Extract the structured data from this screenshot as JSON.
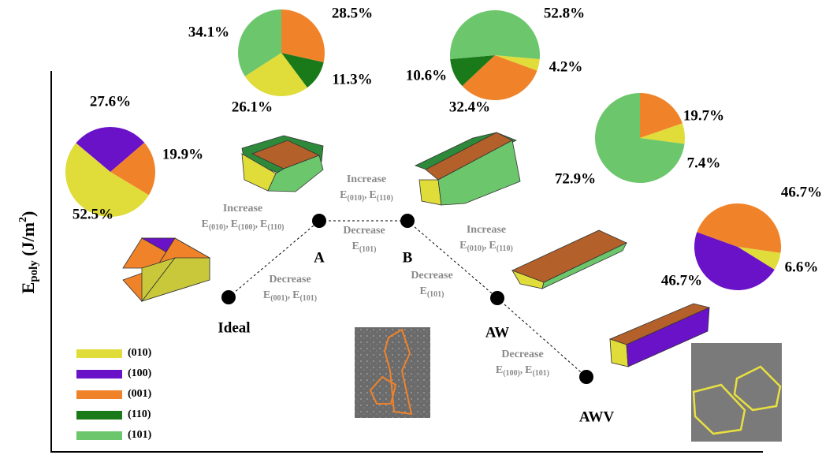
{
  "y_axis_label": {
    "base": "E",
    "sub": "poly",
    "rest": " (J/m",
    "sup": "2",
    "end": ")"
  },
  "pies": [
    {
      "state": "Ideal",
      "slices": [
        {
          "facet": "(100)",
          "color": "#6a12c8",
          "value": 27.6,
          "value_label": "27.6%"
        },
        {
          "facet": "(001)",
          "color": "#f0832a",
          "value": 19.9,
          "value_label": "19.9%"
        },
        {
          "facet": "(010)",
          "color": "#e0dc3a",
          "value": 52.5,
          "value_label": "52.5%"
        }
      ]
    },
    {
      "state": "A",
      "slices": [
        {
          "facet": "(001)",
          "color": "#f0832a",
          "value": 28.5,
          "value_label": "28.5%"
        },
        {
          "facet": "(110)",
          "color": "#1a7a1a",
          "value": 11.3,
          "value_label": "11.3%"
        },
        {
          "facet": "(010)",
          "color": "#e0dc3a",
          "value": 26.1,
          "value_label": "26.1%"
        },
        {
          "facet": "(101)",
          "color": "#6cc66c",
          "value": 34.1,
          "value_label": "34.1%"
        }
      ]
    },
    {
      "state": "B",
      "slices": [
        {
          "facet": "(010)",
          "color": "#e0dc3a",
          "value": 4.2,
          "value_label": "4.2%"
        },
        {
          "facet": "(001)",
          "color": "#f0832a",
          "value": 32.4,
          "value_label": "32.4%"
        },
        {
          "facet": "(110)",
          "color": "#1a7a1a",
          "value": 10.6,
          "value_label": "10.6%"
        },
        {
          "facet": "(101)",
          "color": "#6cc66c",
          "value": 52.8,
          "value_label": "52.8%"
        }
      ]
    },
    {
      "state": "AW",
      "slices": [
        {
          "facet": "(001)",
          "color": "#f0832a",
          "value": 19.7,
          "value_label": "19.7%"
        },
        {
          "facet": "(010)",
          "color": "#e0dc3a",
          "value": 7.4,
          "value_label": "7.4%"
        },
        {
          "facet": "(101)",
          "color": "#6cc66c",
          "value": 72.9,
          "value_label": "72.9%"
        }
      ]
    },
    {
      "state": "AWV",
      "slices": [
        {
          "facet": "(010)",
          "color": "#e0dc3a",
          "value": 6.6,
          "value_label": "6.6%"
        },
        {
          "facet": "(100)",
          "color": "#6a12c8",
          "value": 46.7,
          "value_label": "46.7%"
        },
        {
          "facet": "(001)",
          "color": "#f0832a",
          "value": 46.7,
          "value_label": "46.7%"
        }
      ]
    }
  ],
  "states": [
    "Ideal",
    "A",
    "B",
    "AW",
    "AWV"
  ],
  "annotations": [
    {
      "word": "Increase",
      "separator": ",",
      "terms": [
        {
          "base": "E",
          "sub": "(010)"
        },
        {
          "base": "E",
          "sub": "(100)"
        },
        {
          "base": "E",
          "sub": "(110)"
        }
      ]
    },
    {
      "word": "Decrease",
      "separator": ",",
      "terms": [
        {
          "base": "E",
          "sub": "(001)"
        },
        {
          "base": "E",
          "sub": "(101)"
        }
      ]
    },
    {
      "word": "Increase",
      "separator": ",",
      "terms": [
        {
          "base": "E",
          "sub": "(010)"
        },
        {
          "base": "E",
          "sub": "(110)"
        }
      ]
    },
    {
      "word": "Decrease",
      "separator": ",",
      "terms": [
        {
          "base": "E",
          "sub": "(101)"
        }
      ]
    },
    {
      "word": "Decrease",
      "separator": ",",
      "terms": [
        {
          "base": "E",
          "sub": "(101)"
        }
      ]
    },
    {
      "word": "Increase",
      "separator": ",",
      "terms": [
        {
          "base": "E",
          "sub": "(010)"
        },
        {
          "base": "E",
          "sub": "(110)"
        }
      ]
    },
    {
      "word": "Decrease",
      "separator": ",",
      "terms": [
        {
          "base": "E",
          "sub": "(100)"
        },
        {
          "base": "E",
          "sub": "(101)"
        }
      ]
    }
  ],
  "legend": [
    {
      "label": "(010)",
      "color": "#e0dc3a"
    },
    {
      "label": "(100)",
      "color": "#6a12c8"
    },
    {
      "label": "(001)",
      "color": "#f0832a"
    },
    {
      "label": "(110)",
      "color": "#1a7a1a"
    },
    {
      "label": "(101)",
      "color": "#6cc66c"
    }
  ]
}
